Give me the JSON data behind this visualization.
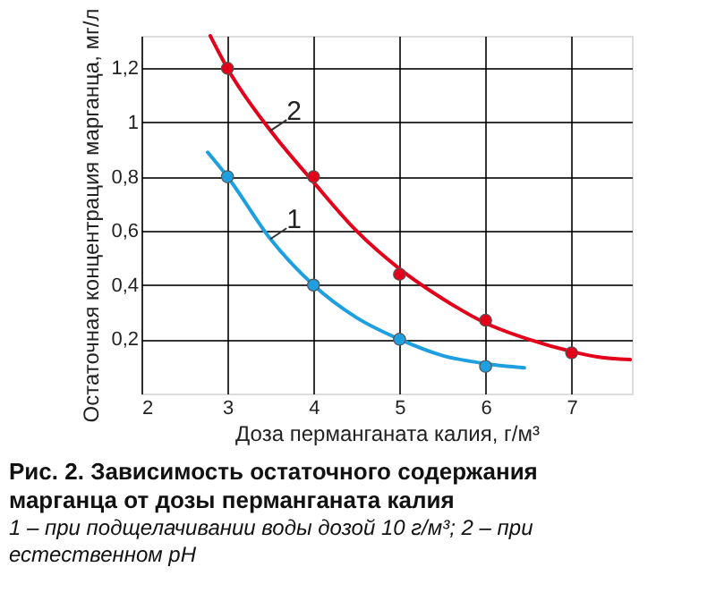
{
  "chart_data": {
    "type": "line",
    "title": "Рис. 2. Зависимость остаточного содержания марганца от дозы перманганата калия",
    "subtitle": "1 – при подщелачивании воды дозой 10 г/м³; 2 – при естественном рН",
    "xlabel": "Доза перманганата калия, г/м³",
    "ylabel": "Остаточная концентрация марганца, мг/л",
    "xlim": [
      2,
      7.7
    ],
    "ylim": [
      0,
      1.32
    ],
    "xticks": [
      2,
      3,
      4,
      5,
      6,
      7
    ],
    "yticks": [
      {
        "value": 0.2,
        "label": "0,2"
      },
      {
        "value": 0.4,
        "label": "0,4"
      },
      {
        "value": 0.6,
        "label": "0,6"
      },
      {
        "value": 0.8,
        "label": "0,8"
      },
      1,
      {
        "value": 1.2,
        "label": "1,2"
      }
    ],
    "grid": true,
    "legend": false,
    "line_style": "solid",
    "series": [
      {
        "name": "1",
        "marker": "none",
        "color": "#1e9fe0",
        "x": [
          2.77,
          3,
          3.5,
          4,
          4.5,
          5,
          5.5,
          6,
          6.45
        ],
        "values": [
          0.89,
          0.8,
          0.57,
          0.4,
          0.28,
          0.2,
          0.14,
          0.11,
          0.095
        ]
      },
      {
        "name": "2",
        "marker": "none",
        "color": "#e3001b",
        "x": [
          2.8,
          3,
          3.5,
          4,
          4.5,
          5,
          5.5,
          6,
          6.5,
          7,
          7.3,
          7.68
        ],
        "values": [
          1.32,
          1.2,
          0.97,
          0.78,
          0.6,
          0.46,
          0.35,
          0.26,
          0.2,
          0.155,
          0.135,
          0.125
        ]
      },
      {
        "type": "scatter",
        "marker": "circle",
        "color": "#1e9fe0",
        "x": [
          3,
          4,
          5,
          6
        ],
        "values": [
          0.8,
          0.4,
          0.2,
          0.1
        ]
      },
      {
        "type": "scatter",
        "marker": "circle",
        "color": "#e3001b",
        "x": [
          3,
          4,
          5,
          6,
          7
        ],
        "values": [
          1.2,
          0.8,
          0.44,
          0.27,
          0.15
        ]
      }
    ]
  }
}
